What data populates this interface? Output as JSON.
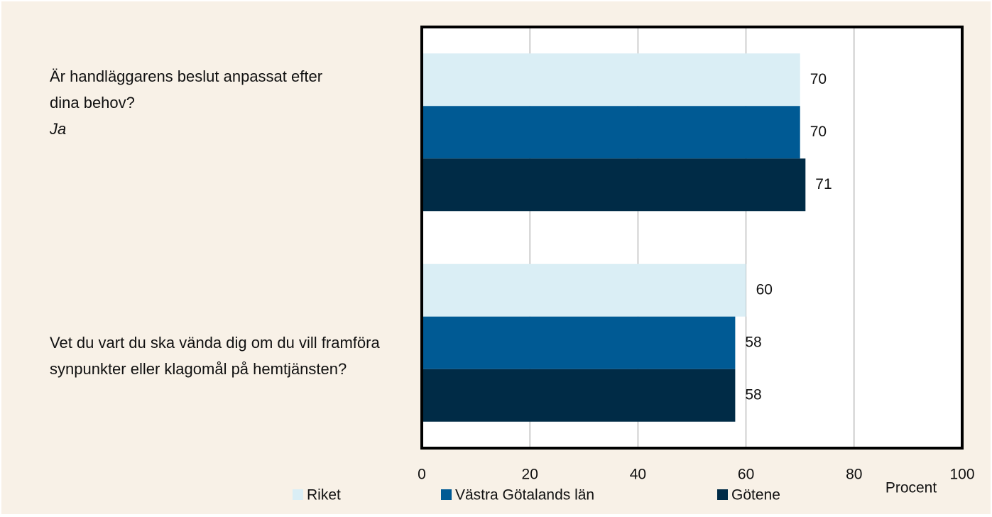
{
  "chart_data": {
    "type": "bar",
    "orientation": "horizontal",
    "categories": [
      "Är handläggarens beslut anpassat efter\ndina behov?",
      "Vet du vart du ska vända dig om du vill framföra synpunkter eller klagomål på hemtjänsten?"
    ],
    "annotation": "Ja",
    "series": [
      {
        "name": "Riket",
        "color": "#daeef5",
        "values": [
          70,
          60
        ]
      },
      {
        "name": "Västra Götalands län",
        "color": "#005a94",
        "values": [
          70,
          58
        ]
      },
      {
        "name": "Götene",
        "color": "#002b46",
        "values": [
          71,
          58
        ]
      }
    ],
    "xlabel": "Procent",
    "xlim": [
      0,
      100
    ],
    "xticks": [
      0,
      20,
      40,
      60,
      80,
      100
    ],
    "grid": true,
    "legend": "bottom"
  }
}
